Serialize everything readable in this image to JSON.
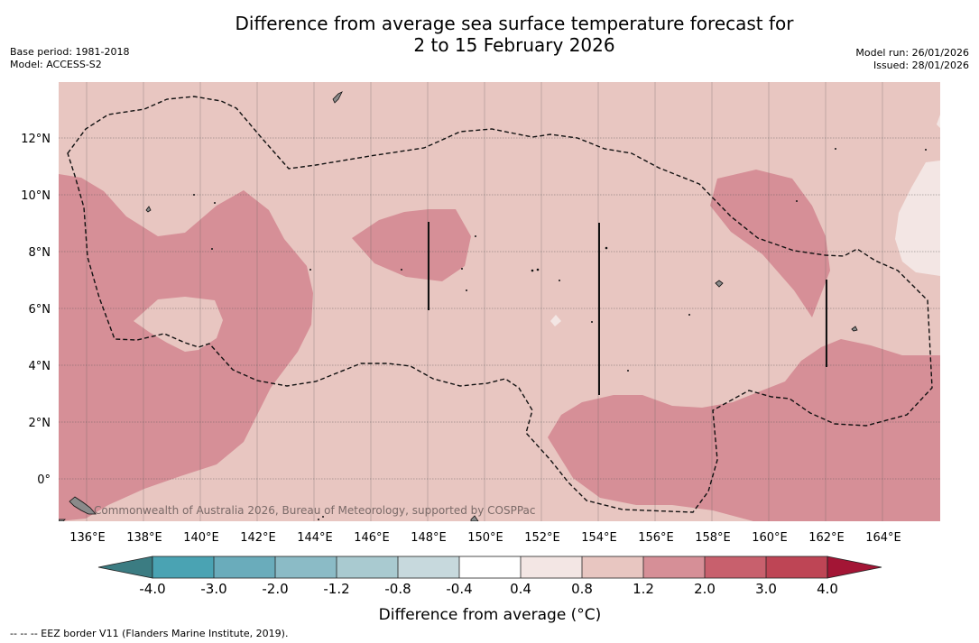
{
  "title": {
    "line1": "Difference from average sea surface temperature forecast for",
    "line2": "2 to 15 February 2026"
  },
  "meta_left": {
    "base_period": "Base period: 1981-2018",
    "model": "Model: ACCESS-S2"
  },
  "meta_right": {
    "model_run": "Model run: 26/01/2026",
    "issued": "Issued: 28/01/2026"
  },
  "map": {
    "lat_labels": [
      "12°N",
      "10°N",
      "8°N",
      "6°N",
      "4°N",
      "2°N",
      "0°"
    ],
    "lon_labels": [
      "136°E",
      "138°E",
      "140°E",
      "142°E",
      "144°E",
      "146°E",
      "148°E",
      "150°E",
      "152°E",
      "154°E",
      "156°E",
      "158°E",
      "160°E",
      "162°E",
      "164°E"
    ],
    "attribution": "Commonwealth of Australia 2026, Bureau of Meteorology, supported by COSPPac"
  },
  "colorbar": {
    "tick_labels": [
      "-4.0",
      "-3.0",
      "-2.0",
      "-1.2",
      "-0.8",
      "-0.4",
      "0.4",
      "0.8",
      "1.2",
      "2.0",
      "3.0",
      "4.0"
    ],
    "colors": [
      "#3b7c82",
      "#4aa3b3",
      "#6aacbb",
      "#8bbbc6",
      "#a9cad0",
      "#c7d9dd",
      "#ffffff",
      "#f3e6e4",
      "#e8c6c1",
      "#d68f97",
      "#c8606d",
      "#be4555",
      "#a31535"
    ],
    "title": "Difference from average (°C)"
  },
  "footnote": "--  --  -- EEZ border V11 (Flanders Marine Institute, 2019)."
}
